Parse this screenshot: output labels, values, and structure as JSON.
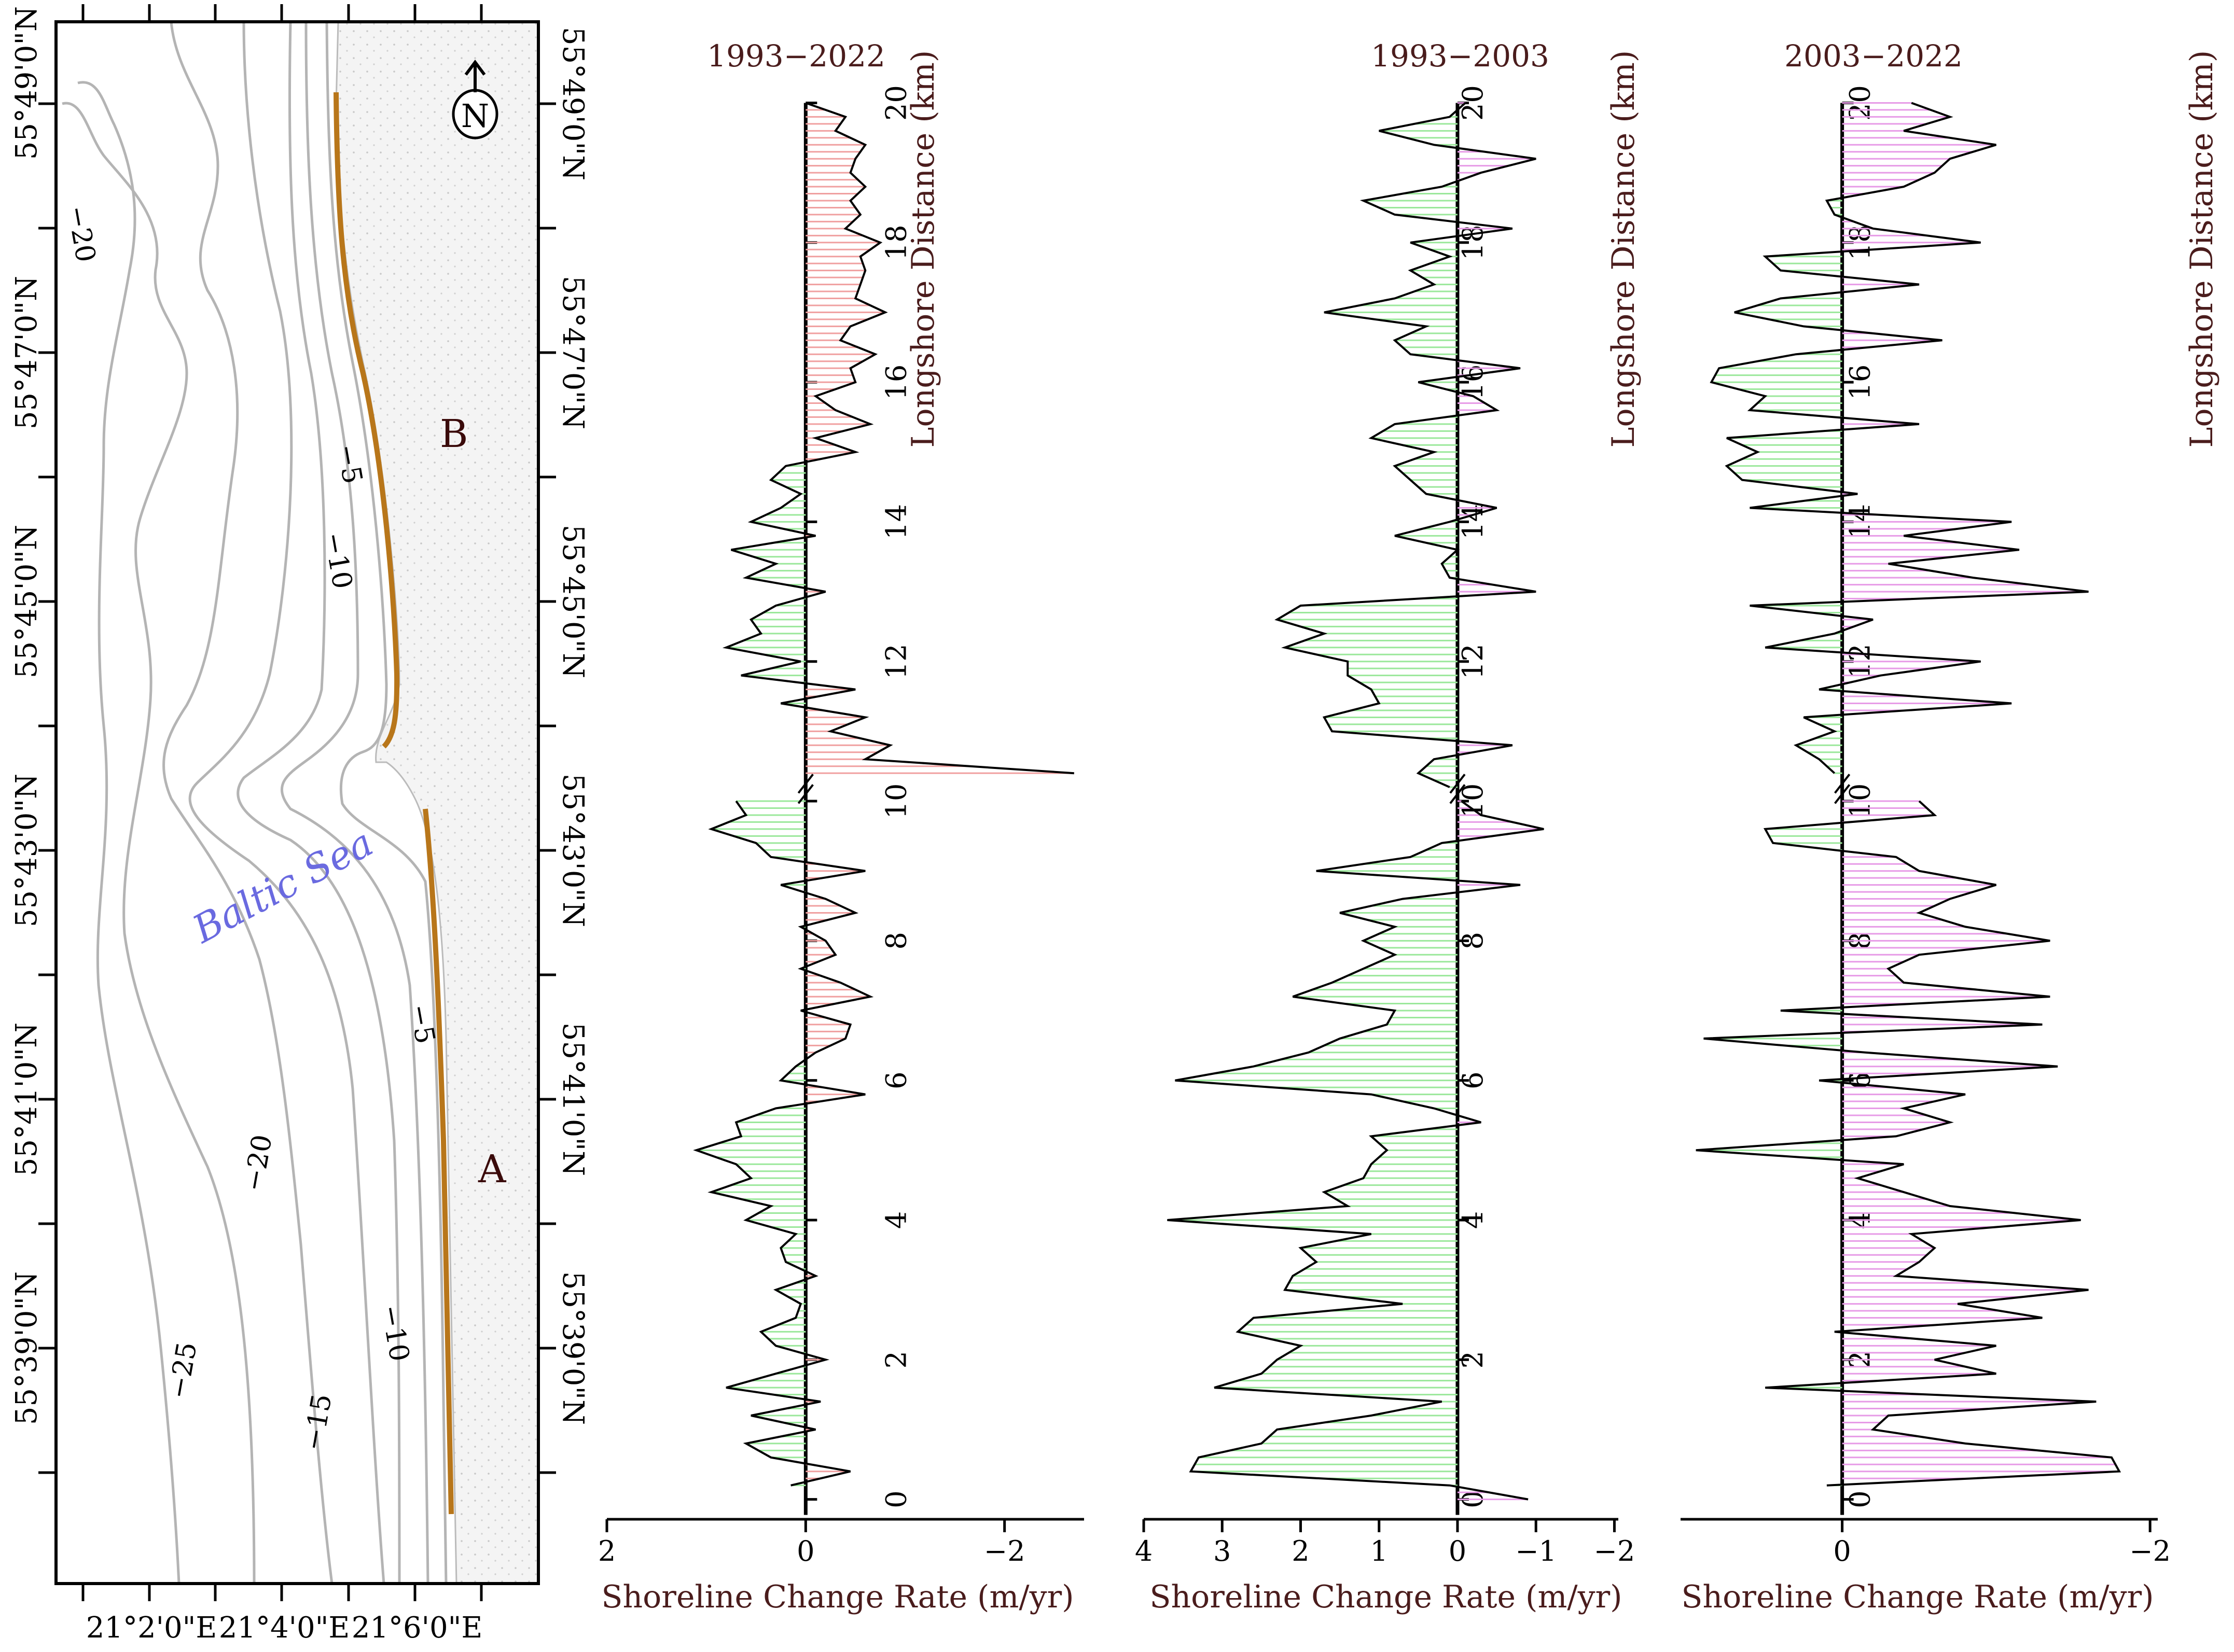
{
  "map": {
    "sea_label": "Baltic Sea",
    "site_a": "A",
    "site_b": "B",
    "north_label": "N",
    "lat_labels": [
      "55°49'0\"N",
      "55°47'0\"N",
      "55°45'0\"N",
      "55°43'0\"N",
      "55°41'0\"N",
      "55°39'0\"N"
    ],
    "lon_labels": [
      "21°2'0\"E",
      "21°4'0\"E",
      "21°6'0\"E"
    ],
    "contour_labels": [
      {
        "text": "−20",
        "pos": "upper-left"
      },
      {
        "text": "−5",
        "pos": "upper-shore"
      },
      {
        "text": "−10",
        "pos": "upper-offshore"
      },
      {
        "text": "−5",
        "pos": "lower-shore"
      },
      {
        "text": "−20",
        "pos": "lower-middle"
      },
      {
        "text": "−10",
        "pos": "lower-offshore"
      },
      {
        "text": "−25",
        "pos": "lower-left"
      },
      {
        "text": "−15",
        "pos": "lower-center"
      }
    ],
    "colors": {
      "shoreline": "#b8761a",
      "contour": "#b4b4b4",
      "sea_label": "#6a6ae0",
      "land": "#f2f2f2"
    }
  },
  "colors": {
    "accretion": "#9be89b",
    "erosion_red": "#f0a0a0",
    "erosion_magenta": "#e79be7",
    "line": "#000000",
    "title_text": "#4a1c1c"
  },
  "chart_data": [
    {
      "type": "area",
      "title": "1993−2022",
      "xlabel": "Shoreline Change Rate (m/yr)",
      "ylabel": "Longshore Distance (km)",
      "xlim": [
        2,
        -2.8
      ],
      "ylim": [
        -0.3,
        20.1
      ],
      "x_ticks": [
        2,
        0,
        -2
      ],
      "x_tick_labels": [
        "2",
        "0",
        "−2"
      ],
      "y_ticks": [
        0,
        2,
        4,
        6,
        8,
        10,
        12,
        14,
        16,
        18,
        20
      ],
      "y_tick_labels": [
        "0",
        "2",
        "4",
        "6",
        "8",
        "10",
        "12",
        "14",
        "16",
        "18",
        "20"
      ],
      "erosion_fill": "#f0a0a0",
      "segments": [
        {
          "y": [
            0.2,
            0.4,
            0.6,
            0.8,
            1.0,
            1.2,
            1.4,
            1.6,
            1.8,
            2.0,
            2.2,
            2.4,
            2.6,
            2.8,
            3.0,
            3.2,
            3.4,
            3.6,
            3.8,
            4.0,
            4.2,
            4.4,
            4.6,
            4.8,
            5.0,
            5.2,
            5.4,
            5.6,
            5.8,
            6.0,
            6.2,
            6.4,
            6.6,
            6.8,
            7.0,
            7.2,
            7.4,
            7.6,
            7.8,
            8.0,
            8.2,
            8.4,
            8.6,
            8.8,
            9.0,
            9.2,
            9.4,
            9.6,
            9.8,
            10.0
          ],
          "x": [
            0.15,
            -0.45,
            0.35,
            0.6,
            -0.1,
            0.55,
            -0.15,
            0.8,
            0.3,
            -0.2,
            0.3,
            0.45,
            0.1,
            0.05,
            0.3,
            -0.1,
            0.2,
            0.25,
            0.1,
            0.6,
            0.35,
            0.95,
            0.55,
            0.7,
            1.1,
            0.65,
            0.7,
            0.3,
            -0.6,
            0.25,
            0.1,
            -0.1,
            -0.4,
            -0.45,
            0.05,
            -0.65,
            -0.35,
            0.05,
            -0.3,
            -0.2,
            0.05,
            -0.5,
            -0.2,
            0.25,
            -0.6,
            0.35,
            0.5,
            0.95,
            0.6,
            0.7
          ]
        },
        {
          "y": [
            10.4,
            10.6,
            10.8,
            11.0,
            11.2,
            11.4,
            11.6,
            11.8,
            12.0,
            12.2,
            12.4,
            12.6,
            12.8,
            13.0,
            13.2,
            13.4,
            13.6,
            13.8,
            14.0,
            14.2,
            14.4,
            14.6,
            14.8,
            15.0,
            15.2,
            15.4,
            15.6,
            15.8,
            16.0,
            16.2,
            16.4,
            16.6,
            16.8,
            17.0,
            17.2,
            17.4,
            17.6,
            17.8,
            18.0,
            18.2,
            18.4,
            18.6,
            18.8,
            19.0,
            19.2,
            19.4,
            19.6,
            19.8,
            20.0
          ],
          "x": [
            -2.7,
            -0.6,
            -0.85,
            -0.25,
            -0.6,
            0.25,
            -0.5,
            0.65,
            0.05,
            0.8,
            0.45,
            0.55,
            0.3,
            -0.2,
            0.6,
            0.3,
            0.75,
            -0.1,
            0.55,
            0.25,
            0.05,
            0.35,
            0.2,
            -0.5,
            -0.1,
            -0.65,
            -0.3,
            -0.1,
            -0.5,
            -0.45,
            -0.7,
            -0.35,
            -0.45,
            -0.8,
            -0.5,
            -0.55,
            -0.6,
            -0.55,
            -0.75,
            -0.4,
            -0.55,
            -0.45,
            -0.6,
            -0.45,
            -0.5,
            -0.6,
            -0.3,
            -0.4,
            0.0
          ]
        }
      ]
    },
    {
      "type": "area",
      "title": "1993−2003",
      "xlabel": "Shoreline Change Rate (m/yr)",
      "ylabel": "Longshore Distance (km)",
      "xlim": [
        4,
        -2.05
      ],
      "ylim": [
        -0.3,
        20.1
      ],
      "x_ticks": [
        4,
        3,
        2,
        1,
        0,
        -1,
        -2
      ],
      "x_tick_labels": [
        "4",
        "3",
        "2",
        "1",
        "0",
        "−1",
        "−2"
      ],
      "y_ticks": [
        0,
        2,
        4,
        6,
        8,
        10,
        12,
        14,
        16,
        18,
        20
      ],
      "y_tick_labels": [
        "0",
        "2",
        "4",
        "6",
        "8",
        "10",
        "12",
        "14",
        "16",
        "18",
        "20"
      ],
      "erosion_fill": "#e79be7",
      "segments": [
        {
          "y": [
            0,
            0.2,
            0.4,
            0.6,
            0.8,
            1.0,
            1.2,
            1.4,
            1.6,
            1.8,
            2.0,
            2.2,
            2.4,
            2.6,
            2.8,
            3.0,
            3.2,
            3.4,
            3.6,
            3.8,
            4.0,
            4.2,
            4.4,
            4.6,
            4.8,
            5.0,
            5.2,
            5.4,
            5.6,
            5.8,
            6.0,
            6.2,
            6.4,
            6.6,
            6.8,
            7.0,
            7.2,
            7.4,
            7.6,
            7.8,
            8.0,
            8.2,
            8.4,
            8.6,
            8.8,
            9.0,
            9.2,
            9.4,
            9.6,
            9.8,
            10.0
          ],
          "x": [
            -0.9,
            0.1,
            3.4,
            3.3,
            2.5,
            2.3,
            1.1,
            0.2,
            3.1,
            2.5,
            2.3,
            2.0,
            2.8,
            2.6,
            0.7,
            2.2,
            2.1,
            1.8,
            2.0,
            1.1,
            3.7,
            1.4,
            1.7,
            1.2,
            1.1,
            0.9,
            1.1,
            -0.3,
            0.3,
            1.1,
            3.6,
            2.6,
            1.9,
            1.5,
            0.9,
            0.8,
            2.1,
            1.6,
            1.2,
            0.8,
            1.2,
            0.8,
            1.5,
            0.7,
            -0.8,
            1.8,
            0.6,
            0.2,
            -1.1,
            -0.3,
            -0.05
          ]
        },
        {
          "y": [
            10.2,
            10.4,
            10.6,
            10.8,
            11.0,
            11.2,
            11.4,
            11.6,
            11.8,
            12.0,
            12.2,
            12.4,
            12.6,
            12.8,
            13.0,
            13.2,
            13.4,
            13.6,
            13.8,
            14.0,
            14.2,
            14.4,
            14.6,
            14.8,
            15.0,
            15.2,
            15.4,
            15.6,
            15.8,
            16.0,
            16.2,
            16.4,
            16.6,
            16.8,
            17.0,
            17.2,
            17.4,
            17.6,
            17.8,
            18.0,
            18.2,
            18.4,
            18.6,
            18.8,
            19.0,
            19.2,
            19.4,
            19.6,
            19.8,
            20.0
          ],
          "x": [
            0.1,
            0.5,
            0.3,
            -0.7,
            1.6,
            1.7,
            1.0,
            1.1,
            1.4,
            1.4,
            2.2,
            1.7,
            2.3,
            2.0,
            -1.0,
            0.1,
            0.2,
            0.0,
            0.8,
            0.1,
            -0.5,
            0.4,
            0.6,
            0.8,
            0.3,
            1.1,
            0.8,
            -0.5,
            -0.2,
            0.5,
            -0.8,
            0.6,
            0.8,
            0.4,
            1.7,
            0.8,
            0.3,
            0.6,
            0.1,
            0.6,
            -0.7,
            0.8,
            1.2,
            0.2,
            -0.3,
            -1.0,
            0.3,
            1.0,
            0.1,
            -0.1
          ]
        }
      ]
    },
    {
      "type": "area",
      "title": "2003−2022",
      "xlabel": "Shoreline Change Rate (m/yr)",
      "ylabel": "Longshore Distance (km)",
      "xlim": [
        1.05,
        -2.05
      ],
      "ylim": [
        -0.3,
        20.1
      ],
      "x_ticks": [
        0,
        -2
      ],
      "x_tick_labels": [
        "0",
        "−2"
      ],
      "y_ticks": [
        0,
        2,
        4,
        6,
        8,
        10,
        12,
        14,
        16,
        18,
        20
      ],
      "y_tick_labels": [
        "0",
        "2",
        "4",
        "6",
        "8",
        "10",
        "12",
        "14",
        "16",
        "18",
        "20"
      ],
      "erosion_fill": "#e79be7",
      "segments": [
        {
          "y": [
            0.2,
            0.4,
            0.6,
            0.8,
            1.0,
            1.2,
            1.4,
            1.6,
            1.8,
            2.0,
            2.2,
            2.4,
            2.6,
            2.8,
            3.0,
            3.2,
            3.4,
            3.6,
            3.8,
            4.0,
            4.2,
            4.4,
            4.6,
            4.8,
            5.0,
            5.2,
            5.4,
            5.6,
            5.8,
            6.0,
            6.2,
            6.4,
            6.6,
            6.8,
            7.0,
            7.2,
            7.4,
            7.6,
            7.8,
            8.0,
            8.2,
            8.4,
            8.6,
            8.8,
            9.0,
            9.2,
            9.4,
            9.6,
            9.8,
            10.0
          ],
          "x": [
            0.1,
            -1.8,
            -1.75,
            -0.8,
            -0.2,
            -0.3,
            -1.65,
            0.5,
            -1.0,
            -0.6,
            -1.0,
            0.05,
            -1.3,
            -0.75,
            -1.6,
            -0.35,
            -0.5,
            -0.6,
            -0.45,
            -1.55,
            -0.7,
            -0.4,
            -0.1,
            -0.4,
            0.95,
            -0.35,
            -0.7,
            -0.4,
            -0.8,
            0.15,
            -1.4,
            -0.15,
            0.9,
            -1.3,
            0.4,
            -1.35,
            -0.4,
            -0.3,
            -0.5,
            -1.35,
            -0.8,
            -0.5,
            -0.7,
            -1.0,
            -0.5,
            -0.35,
            0.45,
            0.5,
            -0.6,
            -0.5
          ]
        },
        {
          "y": [
            10.4,
            10.6,
            10.8,
            11.0,
            11.2,
            11.4,
            11.6,
            11.8,
            12.0,
            12.2,
            12.4,
            12.6,
            12.8,
            13.0,
            13.2,
            13.4,
            13.6,
            13.8,
            14.0,
            14.2,
            14.4,
            14.6,
            14.8,
            15.0,
            15.2,
            15.4,
            15.6,
            15.8,
            16.0,
            16.2,
            16.4,
            16.6,
            16.8,
            17.0,
            17.2,
            17.4,
            17.6,
            17.8,
            18.0,
            18.2,
            18.4,
            18.6,
            18.8,
            19.0,
            19.2,
            19.4,
            19.6,
            19.8,
            20.0
          ],
          "x": [
            0.05,
            0.15,
            0.3,
            0.05,
            0.25,
            -1.1,
            0.15,
            -0.25,
            -0.9,
            0.5,
            0.05,
            -0.2,
            0.6,
            -1.6,
            -0.85,
            -0.3,
            -1.15,
            -0.4,
            -1.1,
            0.6,
            -0.1,
            0.65,
            0.75,
            0.55,
            0.75,
            -0.5,
            0.6,
            0.5,
            0.85,
            0.8,
            0.3,
            -0.65,
            0.25,
            0.7,
            0.4,
            -0.5,
            0.4,
            0.5,
            -0.9,
            -0.2,
            0.05,
            0.1,
            -0.4,
            -0.6,
            -0.7,
            -1.0,
            -0.4,
            -0.7,
            -0.45
          ]
        }
      ]
    }
  ]
}
